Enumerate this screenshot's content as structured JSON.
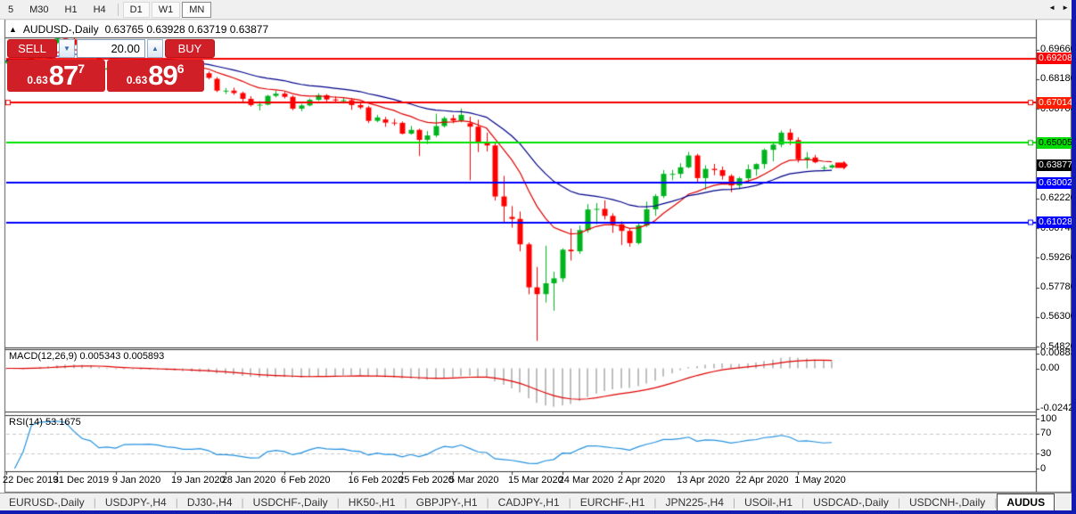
{
  "toolbar": {
    "timeframes": [
      {
        "label": "5",
        "active": false,
        "boxed": false
      },
      {
        "label": "M30",
        "active": false,
        "boxed": false
      },
      {
        "label": "H1",
        "active": false,
        "boxed": false
      },
      {
        "label": "H4",
        "active": false,
        "boxed": false
      },
      {
        "label": "D1",
        "active": false,
        "boxed": true
      },
      {
        "label": "W1",
        "active": false,
        "boxed": true
      },
      {
        "label": "MN",
        "active": true,
        "boxed": false
      }
    ]
  },
  "chart": {
    "title": {
      "marker": "▲",
      "symbol": "AUDUSD-,Daily",
      "quote_string": "0.63765 0.63928 0.63719 0.63877"
    }
  },
  "trade_panel": {
    "sell_label": "SELL",
    "buy_label": "BUY",
    "volume": "20.00",
    "spin_down": "▼",
    "spin_up": "▲",
    "bid": {
      "prefix": "0.63",
      "big": "87",
      "sup": "7"
    },
    "ask": {
      "prefix": "0.63",
      "big": "89",
      "sup": "6"
    }
  },
  "price_axis": {
    "ticks": [
      {
        "label": "0.69660",
        "price": 0.6966
      },
      {
        "label": "0.68180",
        "price": 0.6818
      },
      {
        "label": "0.66700",
        "price": 0.667
      },
      {
        "label": "0.62220",
        "price": 0.6222
      },
      {
        "label": "0.60740",
        "price": 0.6074
      },
      {
        "label": "0.59260",
        "price": 0.5926
      },
      {
        "label": "0.57780",
        "price": 0.5778
      },
      {
        "label": "0.56300",
        "price": 0.563
      },
      {
        "label": "0.54820",
        "price": 0.5482
      }
    ],
    "badges": [
      {
        "label": "0.69208",
        "price": 0.69208,
        "bg": "#ff0000",
        "fg": "#ffffff"
      },
      {
        "label": "0.67014",
        "price": 0.67014,
        "bg": "#ff1c00",
        "fg": "#ffffff"
      },
      {
        "label": "0.65005",
        "price": 0.65005,
        "bg": "#00dd00",
        "fg": "#000000"
      },
      {
        "label": "0.63877",
        "price": 0.63877,
        "bg": "#000000",
        "fg": "#ffffff"
      },
      {
        "label": "0.63002",
        "price": 0.63002,
        "bg": "#0000ff",
        "fg": "#ffffff"
      },
      {
        "label": "0.61028",
        "price": 0.61028,
        "bg": "#0000ff",
        "fg": "#ffffff"
      }
    ]
  },
  "indicators": {
    "macd": {
      "label": "MACD(12,26,9) 0.005343 0.005893",
      "ticks": [
        {
          "label": "0.008833",
          "value": 0.008833
        },
        {
          "label": "0.00",
          "value": 0.0
        },
        {
          "label": "-0.02428",
          "value": -0.02428
        }
      ]
    },
    "rsi": {
      "label": "RSI(14) 53.1675",
      "ticks": [
        {
          "label": "100",
          "value": 100
        },
        {
          "label": "70",
          "value": 70
        },
        {
          "label": "30",
          "value": 30
        },
        {
          "label": "0",
          "value": 0
        }
      ],
      "levels": [
        70,
        30
      ]
    }
  },
  "time_axis": {
    "labels": [
      {
        "text": "22 Dec 2019",
        "bar": 0
      },
      {
        "text": "31 Dec 2019",
        "bar": 6
      },
      {
        "text": "9 Jan 2020",
        "bar": 13
      },
      {
        "text": "19 Jan 2020",
        "bar": 20
      },
      {
        "text": "28 Jan 2020",
        "bar": 26
      },
      {
        "text": "6 Feb 2020",
        "bar": 33
      },
      {
        "text": "16 Feb 2020",
        "bar": 41
      },
      {
        "text": "25 Feb 2020",
        "bar": 47
      },
      {
        "text": "5 Mar 2020",
        "bar": 53
      },
      {
        "text": "15 Mar 2020",
        "bar": 60
      },
      {
        "text": "24 Mar 2020",
        "bar": 66
      },
      {
        "text": "2 Apr 2020",
        "bar": 73
      },
      {
        "text": "13 Apr 2020",
        "bar": 80
      },
      {
        "text": "22 Apr 2020",
        "bar": 87
      },
      {
        "text": "1 May 2020",
        "bar": 94
      }
    ]
  },
  "tabs": {
    "items": [
      {
        "label": "EURUSD-,Daily",
        "active": false
      },
      {
        "label": "USDJPY-,H4",
        "active": false
      },
      {
        "label": "DJ30-,H4",
        "active": false
      },
      {
        "label": "USDCHF-,Daily",
        "active": false
      },
      {
        "label": "HK50-,H1",
        "active": false
      },
      {
        "label": "GBPJPY-,H1",
        "active": false
      },
      {
        "label": "CADJPY-,H1",
        "active": false
      },
      {
        "label": "EURCHF-,H1",
        "active": false
      },
      {
        "label": "JPN225-,H4",
        "active": false
      },
      {
        "label": "USOil-,H1",
        "active": false
      },
      {
        "label": "USDCAD-,Daily",
        "active": false
      },
      {
        "label": "USDCNH-,Daily",
        "active": false
      },
      {
        "label": "AUDUS",
        "active": true
      }
    ],
    "scroll_left": "◄",
    "scroll_right": "►"
  },
  "chart_data": {
    "type": "candlestick",
    "symbol": "AUDUSD",
    "timeframe": "Daily",
    "current": {
      "open": 0.63765,
      "high": 0.63928,
      "low": 0.63719,
      "close": 0.63877,
      "bid": 0.63877,
      "ask": 0.63896
    },
    "ylim": [
      0.5478,
      0.7027
    ],
    "horizontal_lines": [
      {
        "price": 0.69208,
        "color": "#f20000"
      },
      {
        "price": 0.67014,
        "color": "#f20000"
      },
      {
        "price": 0.65005,
        "color": "#00e000"
      },
      {
        "price": 0.63002,
        "color": "#0000ff"
      },
      {
        "price": 0.61028,
        "color": "#0000ff"
      }
    ],
    "overlays": [
      {
        "type": "ema",
        "period": 12,
        "color": "#e00000"
      },
      {
        "type": "ema",
        "period": 26,
        "color": "#000089"
      }
    ],
    "macd": {
      "fast": 12,
      "slow": 26,
      "signal": 9,
      "current": 0.005343,
      "signal_current": 0.005893,
      "max_level": 0.008833,
      "min_level": -0.02428
    },
    "rsi": {
      "period": 14,
      "current": 53.1675,
      "levels": [
        70,
        30
      ]
    },
    "colors": {
      "up": "#00b41e",
      "down": "#ff0000",
      "macd_bar": "#bfbfbf",
      "macd_signal": "#e00000",
      "rsi_line": "#2492e0",
      "level_dash": "#c9c9c9"
    },
    "candles": [
      [
        0.69,
        0.6918,
        0.6895,
        0.6912
      ],
      [
        0.6912,
        0.692,
        0.6896,
        0.6906
      ],
      [
        0.6906,
        0.6917,
        0.6901,
        0.6909
      ],
      [
        0.6909,
        0.695,
        0.6904,
        0.6946
      ],
      [
        0.6946,
        0.699,
        0.6941,
        0.6986
      ],
      [
        0.6986,
        0.701,
        0.6978,
        0.7
      ],
      [
        0.7,
        0.7032,
        0.6994,
        0.7021
      ],
      [
        0.7021,
        0.703,
        0.701,
        0.7018
      ],
      [
        0.7018,
        0.7023,
        0.6983,
        0.6989
      ],
      [
        0.6989,
        0.7001,
        0.6944,
        0.6951
      ],
      [
        0.6951,
        0.6959,
        0.6924,
        0.6935
      ],
      [
        0.6935,
        0.6941,
        0.686,
        0.6866
      ],
      [
        0.6866,
        0.6889,
        0.685,
        0.6873
      ],
      [
        0.6873,
        0.6883,
        0.6849,
        0.6857
      ],
      [
        0.6857,
        0.6903,
        0.6853,
        0.6899
      ],
      [
        0.6899,
        0.6914,
        0.6886,
        0.6902
      ],
      [
        0.6902,
        0.6912,
        0.6884,
        0.6902
      ],
      [
        0.6902,
        0.692,
        0.6893,
        0.6904
      ],
      [
        0.6904,
        0.6914,
        0.6885,
        0.6894
      ],
      [
        0.6894,
        0.6901,
        0.6862,
        0.6873
      ],
      [
        0.6873,
        0.6884,
        0.6859,
        0.6866
      ],
      [
        0.6866,
        0.6878,
        0.6836,
        0.6844
      ],
      [
        0.6844,
        0.6879,
        0.6839,
        0.6843
      ],
      [
        0.6843,
        0.6856,
        0.6809,
        0.6848
      ],
      [
        0.6848,
        0.6857,
        0.6818,
        0.6825
      ],
      [
        0.682,
        0.6829,
        0.6754,
        0.6761
      ],
      [
        0.6761,
        0.6774,
        0.6744,
        0.6761
      ],
      [
        0.6761,
        0.6776,
        0.674,
        0.6749
      ],
      [
        0.6749,
        0.6756,
        0.67,
        0.672
      ],
      [
        0.672,
        0.6733,
        0.6682,
        0.6689
      ],
      [
        0.6689,
        0.6708,
        0.6662,
        0.6691
      ],
      [
        0.6691,
        0.674,
        0.6688,
        0.6735
      ],
      [
        0.6735,
        0.6761,
        0.6727,
        0.6746
      ],
      [
        0.6746,
        0.6755,
        0.6722,
        0.673
      ],
      [
        0.673,
        0.6737,
        0.6663,
        0.6671
      ],
      [
        0.6671,
        0.6695,
        0.6658,
        0.6687
      ],
      [
        0.6687,
        0.6722,
        0.6683,
        0.6715
      ],
      [
        0.6715,
        0.6748,
        0.671,
        0.6738
      ],
      [
        0.6738,
        0.6744,
        0.6707,
        0.6717
      ],
      [
        0.6717,
        0.6732,
        0.6701,
        0.6712
      ],
      [
        0.6712,
        0.6724,
        0.6697,
        0.6713
      ],
      [
        0.6713,
        0.6722,
        0.6665,
        0.6689
      ],
      [
        0.6689,
        0.6699,
        0.6668,
        0.6677
      ],
      [
        0.6677,
        0.6685,
        0.6599,
        0.661
      ],
      [
        0.661,
        0.664,
        0.6603,
        0.6627
      ],
      [
        0.6617,
        0.663,
        0.658,
        0.6601
      ],
      [
        0.6601,
        0.662,
        0.6586,
        0.66
      ],
      [
        0.66,
        0.6607,
        0.6542,
        0.6546
      ],
      [
        0.6546,
        0.6585,
        0.6541,
        0.6565
      ],
      [
        0.6565,
        0.6571,
        0.6434,
        0.6515
      ],
      [
        0.6515,
        0.6559,
        0.6494,
        0.6537
      ],
      [
        0.6537,
        0.6646,
        0.6528,
        0.6584
      ],
      [
        0.6584,
        0.6632,
        0.6577,
        0.6623
      ],
      [
        0.6623,
        0.664,
        0.6598,
        0.6611
      ],
      [
        0.6611,
        0.6672,
        0.6603,
        0.664
      ],
      [
        0.6598,
        0.6631,
        0.6313,
        0.6581
      ],
      [
        0.6581,
        0.6616,
        0.6454,
        0.6504
      ],
      [
        0.6504,
        0.6551,
        0.6457,
        0.6487
      ],
      [
        0.6487,
        0.6497,
        0.6212,
        0.6232
      ],
      [
        0.6232,
        0.6335,
        0.6103,
        0.6183
      ],
      [
        0.613,
        0.6184,
        0.6076,
        0.612
      ],
      [
        0.612,
        0.6157,
        0.5958,
        0.5993
      ],
      [
        0.5993,
        0.6002,
        0.5743,
        0.5778
      ],
      [
        0.5778,
        0.588,
        0.551,
        0.5744
      ],
      [
        0.5744,
        0.5986,
        0.5702,
        0.5798
      ],
      [
        0.5798,
        0.5856,
        0.5661,
        0.5823
      ],
      [
        0.5823,
        0.5973,
        0.5805,
        0.5966
      ],
      [
        0.5966,
        0.6072,
        0.5912,
        0.5958
      ],
      [
        0.5958,
        0.6087,
        0.5946,
        0.6064
      ],
      [
        0.6064,
        0.6194,
        0.6051,
        0.6167
      ],
      [
        0.6167,
        0.6199,
        0.6093,
        0.617
      ],
      [
        0.617,
        0.6213,
        0.6117,
        0.6135
      ],
      [
        0.6135,
        0.6148,
        0.605,
        0.6093
      ],
      [
        0.6093,
        0.6108,
        0.5989,
        0.606
      ],
      [
        0.606,
        0.6072,
        0.5981,
        0.5999
      ],
      [
        0.5999,
        0.6097,
        0.5992,
        0.6087
      ],
      [
        0.6087,
        0.6207,
        0.608,
        0.6168
      ],
      [
        0.6168,
        0.6244,
        0.6135,
        0.6234
      ],
      [
        0.6234,
        0.6364,
        0.6224,
        0.6345
      ],
      [
        0.6345,
        0.6365,
        0.6313,
        0.6345
      ],
      [
        0.6345,
        0.6398,
        0.6323,
        0.6378
      ],
      [
        0.6378,
        0.6455,
        0.6373,
        0.6437
      ],
      [
        0.6437,
        0.6445,
        0.6302,
        0.6324
      ],
      [
        0.6324,
        0.6388,
        0.6266,
        0.637
      ],
      [
        0.637,
        0.6395,
        0.6338,
        0.6364
      ],
      [
        0.6364,
        0.6382,
        0.6316,
        0.6335
      ],
      [
        0.6335,
        0.6343,
        0.6253,
        0.6287
      ],
      [
        0.6287,
        0.633,
        0.6268,
        0.6323
      ],
      [
        0.6323,
        0.6392,
        0.6304,
        0.6368
      ],
      [
        0.6368,
        0.6398,
        0.6335,
        0.6394
      ],
      [
        0.6394,
        0.6472,
        0.6371,
        0.6465
      ],
      [
        0.6465,
        0.6505,
        0.6408,
        0.6491
      ],
      [
        0.6491,
        0.6562,
        0.6478,
        0.6551
      ],
      [
        0.6551,
        0.657,
        0.649,
        0.6514
      ],
      [
        0.6514,
        0.6527,
        0.6402,
        0.6418
      ],
      [
        0.6418,
        0.6454,
        0.6372,
        0.6427
      ],
      [
        0.6427,
        0.644,
        0.6398,
        0.6403
      ],
      [
        0.6372,
        0.6387,
        0.6364,
        0.6376
      ],
      [
        0.63765,
        0.63928,
        0.63719,
        0.63877
      ]
    ]
  }
}
